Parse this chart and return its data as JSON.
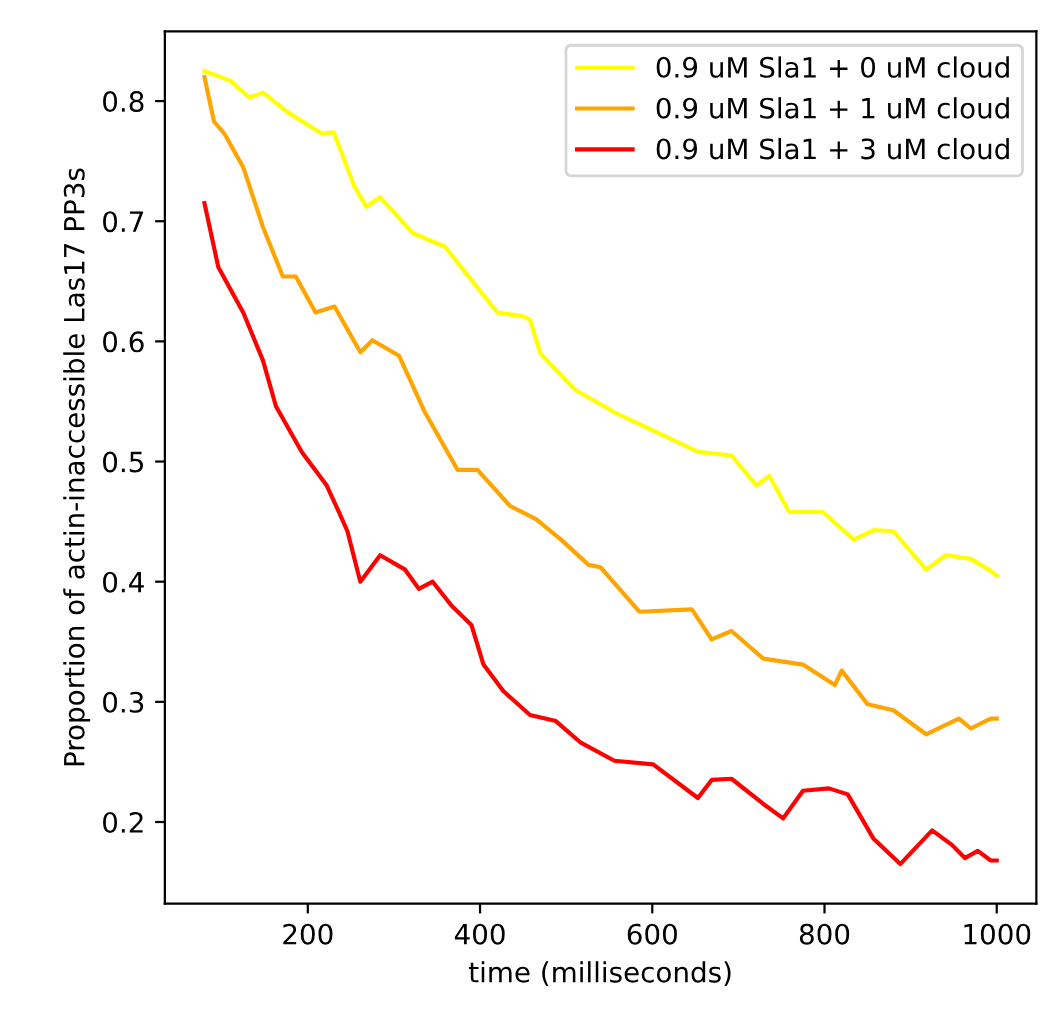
{
  "chart_data": {
    "type": "line",
    "xlabel": "time (milliseconds)",
    "ylabel": "Proportion of actin-inaccessible Las17 PP3s",
    "xlim": [
      34,
      1046
    ],
    "ylim": [
      0.132,
      0.858
    ],
    "xticks": [
      200,
      400,
      600,
      800,
      1000
    ],
    "yticks": [
      0.2,
      0.3,
      0.4,
      0.5,
      0.6,
      0.7,
      0.8
    ],
    "legend": "top right",
    "grid": false,
    "marker": "none",
    "line_style": "solid",
    "series": [
      {
        "name": "0.9 uM Sla1 + 0 uM cloud",
        "color": "#ffff00",
        "x": [
          80,
          110,
          132,
          148,
          178,
          216,
          230,
          254,
          268,
          284,
          322,
          359,
          390,
          420,
          449,
          458,
          470,
          510,
          556,
          624,
          653,
          692,
          721,
          736,
          759,
          798,
          834,
          857,
          880,
          918,
          941,
          970,
          993,
          1000
        ],
        "values": [
          0.825,
          0.817,
          0.803,
          0.807,
          0.79,
          0.773,
          0.774,
          0.729,
          0.712,
          0.72,
          0.69,
          0.679,
          0.651,
          0.624,
          0.621,
          0.618,
          0.59,
          0.56,
          0.541,
          0.518,
          0.508,
          0.505,
          0.48,
          0.488,
          0.458,
          0.458,
          0.435,
          0.443,
          0.442,
          0.41,
          0.422,
          0.419,
          0.409,
          0.405
        ]
      },
      {
        "name": "0.9 uM Sla1 + 1 uM cloud",
        "color": "#ffa500",
        "x": [
          80,
          91,
          103,
          125,
          148,
          171,
          186,
          209,
          231,
          261,
          275,
          306,
          336,
          374,
          397,
          435,
          465,
          494,
          526,
          540,
          585,
          646,
          669,
          692,
          729,
          775,
          812,
          820,
          850,
          880,
          918,
          956,
          970,
          993,
          1000
        ],
        "values": [
          0.82,
          0.783,
          0.773,
          0.745,
          0.695,
          0.654,
          0.654,
          0.624,
          0.629,
          0.591,
          0.601,
          0.588,
          0.541,
          0.493,
          0.493,
          0.463,
          0.452,
          0.435,
          0.414,
          0.412,
          0.375,
          0.377,
          0.352,
          0.359,
          0.336,
          0.331,
          0.314,
          0.326,
          0.298,
          0.293,
          0.273,
          0.286,
          0.278,
          0.286,
          0.286
        ]
      },
      {
        "name": "0.9 uM Sla1 + 3 uM cloud",
        "color": "#ff0000",
        "x": [
          80,
          96,
          125,
          148,
          163,
          193,
          222,
          238,
          246,
          261,
          284,
          313,
          329,
          345,
          367,
          390,
          404,
          427,
          458,
          488,
          517,
          556,
          601,
          653,
          669,
          692,
          729,
          752,
          775,
          805,
          827,
          857,
          888,
          925,
          948,
          963,
          978,
          993,
          1000
        ],
        "values": [
          0.715,
          0.662,
          0.624,
          0.584,
          0.546,
          0.508,
          0.48,
          0.455,
          0.442,
          0.4,
          0.422,
          0.41,
          0.394,
          0.4,
          0.38,
          0.364,
          0.331,
          0.309,
          0.289,
          0.284,
          0.266,
          0.251,
          0.248,
          0.22,
          0.235,
          0.236,
          0.215,
          0.203,
          0.226,
          0.228,
          0.223,
          0.186,
          0.165,
          0.193,
          0.181,
          0.17,
          0.176,
          0.168,
          0.168
        ]
      }
    ]
  }
}
